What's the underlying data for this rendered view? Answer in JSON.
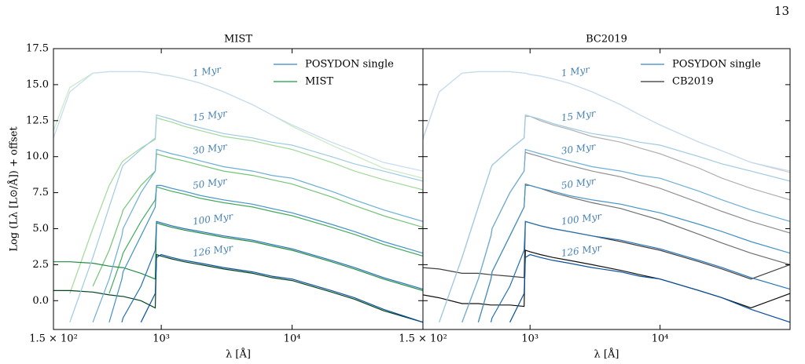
{
  "page_number": "13",
  "chart_data": [
    {
      "type": "line",
      "title": "MIST",
      "xlabel": "λ [Å]",
      "ylabel": "Log (Lλ [L⊙/Å]) + offset",
      "log_x": true,
      "legend": "upper right",
      "age_label_color": "#4682b4",
      "x": [
        150,
        200,
        300,
        400,
        500,
        510,
        700,
        900,
        920,
        1000,
        1200,
        1500,
        2000,
        3000,
        5000,
        7000,
        10000,
        20000,
        30000,
        50000,
        100000
      ],
      "xlim": [
        150,
        100000
      ],
      "xticks": [
        {
          "value": 150,
          "label": "1.5 × 10²"
        },
        {
          "value": 1000,
          "label": "10³"
        },
        {
          "value": 10000,
          "label": "10⁴"
        }
      ],
      "ylim": [
        -2,
        17.5
      ],
      "yticks": [
        {
          "value": 0,
          "label": "0.0"
        },
        2.5,
        {
          "value": 5,
          "label": "5.0"
        },
        7.5,
        {
          "value": 10,
          "label": "10.0"
        },
        12.5,
        {
          "value": 15,
          "label": "15.0"
        },
        17.5
      ],
      "ages": [
        "1 Myr",
        "15 Myr",
        "30 Myr",
        "50 Myr",
        "100 Myr",
        "126 Myr"
      ],
      "series": [
        {
          "name": "MIST",
          "color": "#41ab5d",
          "curve_colors": [
            "#c7e9c0",
            "#a1d99b",
            "#74c476",
            "#41ab5d",
            "#238b45",
            "#00441b"
          ],
          "values": [
            [
              11.8,
              14.8,
              15.8,
              15.9,
              15.9,
              15.9,
              15.9,
              15.8,
              15.8,
              15.7,
              15.6,
              15.4,
              15.1,
              14.5,
              13.6,
              12.9,
              12.1,
              10.8,
              10.1,
              9.2,
              8.5
            ],
            [
              null,
              0.5,
              5.0,
              8.0,
              9.6,
              9.7,
              10.6,
              11.2,
              12.7,
              12.6,
              12.4,
              12.1,
              11.8,
              11.4,
              11.1,
              10.8,
              10.5,
              9.6,
              9.0,
              8.4,
              7.7
            ],
            [
              null,
              null,
              1.0,
              3.5,
              6.0,
              6.3,
              8.0,
              9.0,
              10.2,
              10.1,
              9.9,
              9.7,
              9.4,
              9.0,
              8.7,
              8.4,
              8.1,
              7.2,
              6.6,
              5.9,
              5.1
            ],
            [
              null,
              null,
              null,
              0.5,
              3.0,
              3.3,
              5.5,
              7.0,
              7.9,
              7.8,
              7.6,
              7.4,
              7.1,
              6.8,
              6.5,
              6.2,
              5.9,
              5.1,
              4.6,
              3.9,
              3.1
            ],
            [
              2.7,
              2.7,
              2.6,
              2.4,
              2.3,
              2.3,
              1.9,
              1.5,
              5.4,
              5.3,
              5.1,
              4.9,
              4.7,
              4.4,
              4.1,
              3.8,
              3.5,
              2.7,
              2.2,
              1.5,
              0.7
            ],
            [
              0.7,
              0.7,
              0.6,
              0.4,
              0.3,
              0.3,
              0.0,
              -0.5,
              3.2,
              3.1,
              2.9,
              2.7,
              2.5,
              2.2,
              1.9,
              1.6,
              1.4,
              0.6,
              0.1,
              -0.7,
              -1.5
            ]
          ]
        },
        {
          "name": "POSYDON single",
          "color": "#5a9bd4",
          "curve_colors": [
            "#c6dbef",
            "#9ecae1",
            "#6baed6",
            "#4292c6",
            "#2171b5",
            "#08519c"
          ],
          "values": [
            [
              11.3,
              14.5,
              15.8,
              15.9,
              15.9,
              15.9,
              15.9,
              15.8,
              15.8,
              15.7,
              15.6,
              15.4,
              15.1,
              14.5,
              13.6,
              12.9,
              12.2,
              11.0,
              10.4,
              9.6,
              9.0
            ],
            [
              null,
              -1.5,
              3.0,
              6.5,
              9.2,
              9.4,
              10.5,
              11.3,
              12.9,
              12.8,
              12.6,
              12.3,
              12.0,
              11.6,
              11.3,
              11.0,
              10.8,
              10.0,
              9.5,
              9.0,
              8.3
            ],
            [
              null,
              null,
              -1.5,
              1.5,
              4.5,
              5.0,
              7.5,
              9.0,
              10.5,
              10.4,
              10.2,
              10.0,
              9.7,
              9.3,
              9.0,
              8.7,
              8.5,
              7.6,
              7.0,
              6.3,
              5.5
            ],
            [
              null,
              null,
              null,
              -1.5,
              1.5,
              2.0,
              4.5,
              6.5,
              8.0,
              8.0,
              7.8,
              7.6,
              7.3,
              7.0,
              6.7,
              6.4,
              6.1,
              5.3,
              4.8,
              4.1,
              3.3
            ],
            [
              null,
              null,
              null,
              null,
              -1.5,
              -1.2,
              1.0,
              3.5,
              5.5,
              5.4,
              5.2,
              5.0,
              4.8,
              4.5,
              4.2,
              3.9,
              3.6,
              2.8,
              2.3,
              1.6,
              0.8
            ],
            [
              null,
              null,
              null,
              null,
              null,
              null,
              -1.5,
              0.5,
              3.0,
              3.2,
              3.0,
              2.8,
              2.6,
              2.3,
              2.0,
              1.7,
              1.5,
              0.7,
              0.2,
              -0.6,
              -1.5
            ]
          ]
        }
      ]
    },
    {
      "type": "line",
      "title": "BC2019",
      "xlabel": "λ [Å]",
      "log_x": true,
      "legend": "upper right",
      "sharey": true,
      "age_label_color": "#4682b4",
      "x": [
        150,
        200,
        300,
        400,
        500,
        510,
        700,
        900,
        920,
        1000,
        1200,
        1500,
        2000,
        3000,
        5000,
        7000,
        10000,
        20000,
        30000,
        50000,
        100000
      ],
      "xlim": [
        150,
        100000
      ],
      "xticks": [
        {
          "value": 150,
          "label": "1.5 × 10²"
        },
        {
          "value": 1000,
          "label": "10³"
        },
        {
          "value": 10000,
          "label": "10⁴"
        }
      ],
      "ylim": [
        -2,
        17.5
      ],
      "yticks": [
        0,
        2.5,
        5,
        7.5,
        10,
        12.5,
        15,
        17.5
      ],
      "ages": [
        "1 Myr",
        "15 Myr",
        "30 Myr",
        "50 Myr",
        "100 Myr",
        "126 Myr"
      ],
      "series": [
        {
          "name": "CB2019",
          "color": "#555555",
          "curve_colors": [
            "#d0d0d0",
            "#b0b0b0",
            "#909090",
            "#707070",
            "#404040",
            "#101010"
          ],
          "values": [
            [
              11.2,
              14.5,
              15.8,
              15.9,
              15.9,
              15.9,
              15.9,
              15.8,
              15.8,
              15.7,
              15.6,
              15.4,
              15.1,
              14.5,
              13.6,
              12.9,
              12.2,
              11.0,
              10.4,
              9.6,
              8.9
            ],
            [
              null,
              -1.5,
              3.0,
              6.5,
              9.2,
              9.4,
              10.5,
              11.3,
              12.8,
              12.8,
              12.5,
              12.2,
              11.9,
              11.4,
              11.0,
              10.6,
              10.2,
              9.2,
              8.5,
              7.8,
              7.0
            ],
            [
              null,
              null,
              -1.5,
              1.5,
              4.5,
              5.0,
              7.5,
              9.0,
              10.3,
              10.2,
              10.0,
              9.7,
              9.4,
              9.0,
              8.6,
              8.2,
              7.8,
              6.8,
              6.2,
              5.5,
              4.7
            ],
            [
              null,
              null,
              null,
              -1.5,
              1.5,
              2.0,
              4.5,
              6.5,
              8.1,
              8.0,
              7.8,
              7.5,
              7.2,
              6.8,
              6.4,
              6.0,
              5.6,
              4.6,
              4.0,
              3.3,
              2.5
            ],
            [
              2.3,
              2.2,
              1.9,
              1.9,
              1.8,
              1.8,
              1.7,
              1.6,
              5.5,
              5.4,
              5.2,
              5.0,
              4.8,
              4.5,
              4.1,
              3.8,
              3.5,
              2.7,
              2.2,
              1.5,
              2.5
            ],
            [
              0.4,
              0.2,
              -0.2,
              -0.2,
              -0.3,
              -0.3,
              -0.3,
              -0.4,
              3.5,
              3.4,
              3.2,
              3.0,
              2.8,
              2.5,
              2.1,
              1.8,
              1.5,
              0.7,
              0.2,
              -0.5,
              0.5
            ]
          ]
        },
        {
          "name": "POSYDON single",
          "color": "#5a9bd4",
          "curve_colors": [
            "#c6dbef",
            "#9ecae1",
            "#6baed6",
            "#4292c6",
            "#2171b5",
            "#08519c"
          ],
          "values": [
            [
              11.3,
              14.5,
              15.8,
              15.9,
              15.9,
              15.9,
              15.9,
              15.8,
              15.8,
              15.7,
              15.6,
              15.4,
              15.1,
              14.5,
              13.6,
              12.9,
              12.2,
              11.0,
              10.4,
              9.6,
              9.0
            ],
            [
              null,
              -1.5,
              3.0,
              6.5,
              9.2,
              9.4,
              10.5,
              11.3,
              12.9,
              12.8,
              12.6,
              12.3,
              12.0,
              11.6,
              11.3,
              11.0,
              10.8,
              10.0,
              9.5,
              9.0,
              8.3
            ],
            [
              null,
              null,
              -1.5,
              1.5,
              4.5,
              5.0,
              7.5,
              9.0,
              10.5,
              10.4,
              10.2,
              10.0,
              9.7,
              9.3,
              9.0,
              8.7,
              8.5,
              7.6,
              7.0,
              6.3,
              5.5
            ],
            [
              null,
              null,
              null,
              -1.5,
              1.5,
              2.0,
              4.5,
              6.5,
              8.0,
              8.0,
              7.8,
              7.6,
              7.3,
              7.0,
              6.7,
              6.4,
              6.1,
              5.3,
              4.8,
              4.1,
              3.3
            ],
            [
              null,
              null,
              null,
              null,
              -1.5,
              -1.2,
              1.0,
              3.5,
              5.5,
              5.4,
              5.2,
              5.0,
              4.8,
              4.5,
              4.2,
              3.9,
              3.6,
              2.8,
              2.3,
              1.6,
              0.8
            ],
            [
              null,
              null,
              null,
              null,
              null,
              null,
              -1.5,
              0.5,
              3.0,
              3.2,
              3.0,
              2.8,
              2.6,
              2.3,
              2.0,
              1.7,
              1.5,
              0.7,
              0.2,
              -0.6,
              -1.5
            ]
          ]
        }
      ]
    }
  ]
}
